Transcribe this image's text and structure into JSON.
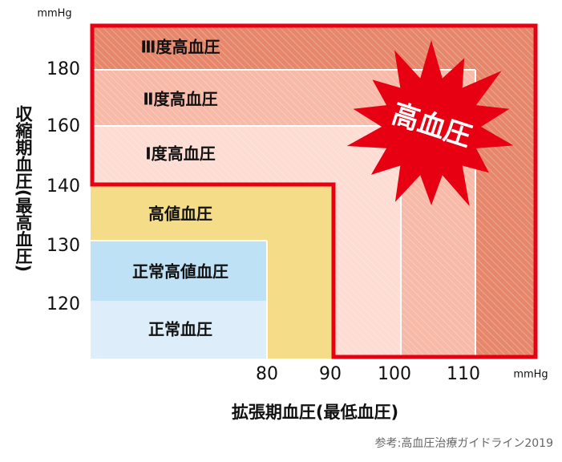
{
  "unit_y": "mmHg",
  "y_ticks": [
    "180",
    "160",
    "140",
    "130",
    "120"
  ],
  "y_axis_label": "収縮期血圧(最高血圧)",
  "x_ticks": [
    "80",
    "90",
    "100",
    "110"
  ],
  "unit_x": "mmHg",
  "x_axis_label": "拡張期血圧(最低血圧)",
  "regions": [
    "Ⅲ度高血圧",
    "Ⅱ度高血圧",
    "Ⅰ度高血圧",
    "高値血圧",
    "正常高値血圧",
    "正常血圧"
  ],
  "badge": "高血圧",
  "source": "参考:高血圧治療ガイドライン2019"
}
